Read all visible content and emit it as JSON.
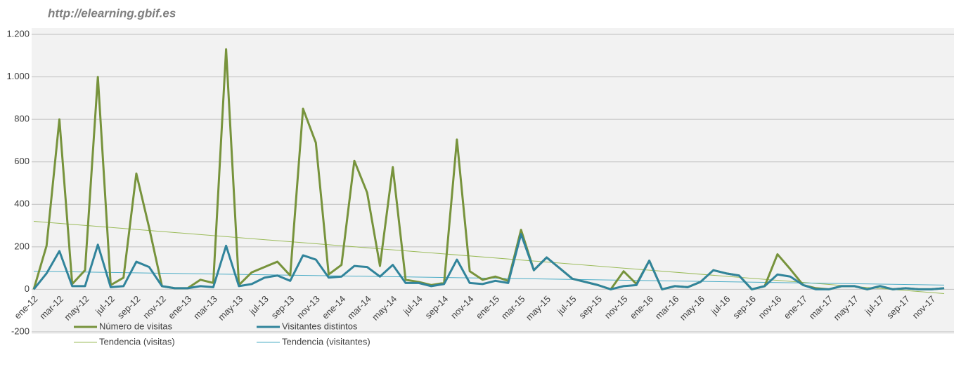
{
  "chart_data": {
    "type": "line",
    "title": "http://elearning.gbif.es",
    "categories": [
      "ene-12",
      null,
      "mar-12",
      null,
      "may-12",
      null,
      "jul-12",
      null,
      "sep-12",
      null,
      "nov-12",
      null,
      "ene-13",
      null,
      "mar-13",
      null,
      "may-13",
      null,
      "jul-13",
      null,
      "sep-13",
      null,
      "nov-13",
      null,
      "ene-14",
      null,
      "mar-14",
      null,
      "may-14",
      null,
      "jul-14",
      null,
      "sep-14",
      null,
      "nov-14",
      null,
      "ene-15",
      null,
      "mar-15",
      null,
      "may-15",
      null,
      "jul-15",
      null,
      "sep-15",
      null,
      "nov-15",
      null,
      "ene-16",
      null,
      "mar-16",
      null,
      "may-16",
      null,
      "jul-16",
      null,
      "sep-16",
      null,
      "nov-16",
      null,
      "ene-17",
      null,
      "mar-17",
      null,
      "may-17",
      null,
      "jul-17",
      null,
      "sep-17",
      null,
      "nov-17",
      null
    ],
    "series": [
      {
        "name": "Número de visitas",
        "color": "#77933c",
        "values": [
          0,
          205,
          800,
          25,
          90,
          1000,
          20,
          55,
          545,
          290,
          15,
          5,
          5,
          45,
          30,
          1130,
          20,
          80,
          105,
          130,
          65,
          850,
          690,
          70,
          115,
          605,
          455,
          110,
          575,
          45,
          35,
          20,
          30,
          705,
          85,
          45,
          60,
          40,
          280,
          90,
          150,
          100,
          50,
          35,
          20,
          0,
          85,
          25,
          135,
          0,
          15,
          10,
          35,
          90,
          75,
          65,
          0,
          15,
          165,
          95,
          20,
          5,
          0,
          15,
          15,
          0,
          15,
          0,
          5,
          0,
          0,
          5
        ]
      },
      {
        "name": "Visitantes distintos",
        "color": "#31849b",
        "values": [
          0,
          75,
          180,
          15,
          15,
          210,
          10,
          15,
          130,
          105,
          15,
          5,
          5,
          15,
          10,
          205,
          15,
          25,
          55,
          65,
          40,
          160,
          140,
          55,
          60,
          110,
          105,
          60,
          115,
          30,
          30,
          15,
          25,
          140,
          30,
          25,
          40,
          30,
          260,
          90,
          150,
          100,
          50,
          35,
          20,
          0,
          15,
          20,
          135,
          0,
          15,
          10,
          35,
          90,
          75,
          65,
          0,
          15,
          70,
          60,
          20,
          0,
          0,
          15,
          15,
          0,
          15,
          0,
          5,
          0,
          0,
          5
        ]
      }
    ],
    "trendlines": [
      {
        "name": "Tendencia (visitas)",
        "color": "#9bbb59",
        "values": [
          320,
          -20
        ]
      },
      {
        "name": "Tendencia (visitantes)",
        "color": "#4bacc6",
        "values": [
          85,
          20
        ]
      }
    ],
    "ylim": [
      -200,
      1200
    ],
    "yticks": [
      -200,
      0,
      200,
      400,
      600,
      800,
      {
        "value": 1000,
        "label": "1.000"
      },
      {
        "value": 1200,
        "label": "1.200"
      }
    ],
    "grid": true
  }
}
